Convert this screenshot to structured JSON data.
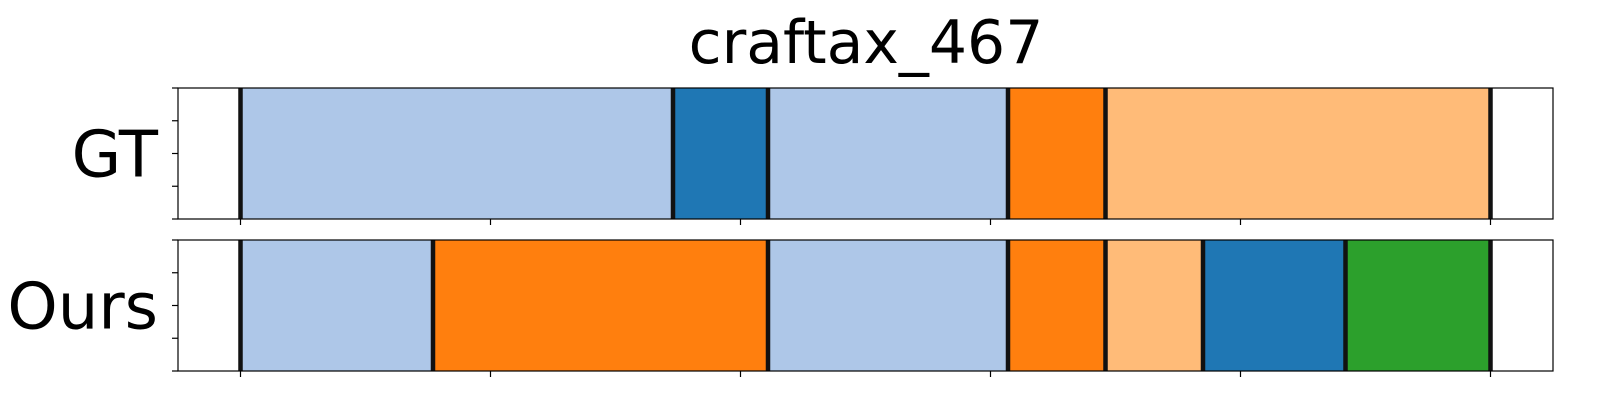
{
  "chart_data": {
    "type": "segmentation-timeline",
    "title": "craftax_467",
    "x_range": [
      -12.5,
      262.5
    ],
    "x_ticks": [
      0,
      50,
      100,
      150,
      200,
      250
    ],
    "y_ticks_count": 5,
    "colors": {
      "light_blue": "#aec7e8",
      "blue": "#1f77b4",
      "orange": "#ff7f0e",
      "light_orange": "#ffbb78",
      "green": "#2ca02c",
      "boundary": "#111111"
    },
    "rows": [
      {
        "label": "GT",
        "segments": [
          {
            "start": 0,
            "end": 86.5,
            "color": "light_blue"
          },
          {
            "start": 86.5,
            "end": 105.5,
            "color": "blue"
          },
          {
            "start": 105.5,
            "end": 153.5,
            "color": "light_blue"
          },
          {
            "start": 153.5,
            "end": 173,
            "color": "orange"
          },
          {
            "start": 173,
            "end": 250,
            "color": "light_orange"
          }
        ]
      },
      {
        "label": "Ours",
        "segments": [
          {
            "start": 0,
            "end": 38.5,
            "color": "light_blue"
          },
          {
            "start": 38.5,
            "end": 105.5,
            "color": "orange"
          },
          {
            "start": 105.5,
            "end": 153.5,
            "color": "light_blue"
          },
          {
            "start": 153.5,
            "end": 173,
            "color": "orange"
          },
          {
            "start": 173,
            "end": 192.5,
            "color": "light_orange"
          },
          {
            "start": 192.5,
            "end": 221,
            "color": "blue"
          },
          {
            "start": 221,
            "end": 250,
            "color": "green"
          }
        ]
      }
    ]
  }
}
